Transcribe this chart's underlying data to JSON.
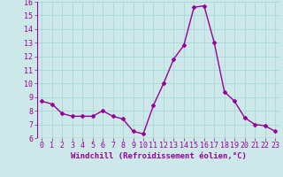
{
  "x": [
    0,
    1,
    2,
    3,
    4,
    5,
    6,
    7,
    8,
    9,
    10,
    11,
    12,
    13,
    14,
    15,
    16,
    17,
    18,
    19,
    20,
    21,
    22,
    23
  ],
  "y": [
    8.7,
    8.5,
    7.8,
    7.6,
    7.6,
    7.6,
    8.0,
    7.6,
    7.4,
    6.5,
    6.3,
    8.4,
    10.0,
    11.8,
    12.8,
    15.6,
    15.7,
    13.0,
    9.4,
    8.7,
    7.5,
    7.0,
    6.9,
    6.5
  ],
  "line_color": "#990099",
  "marker": "D",
  "marker_size": 2,
  "linewidth": 1.0,
  "xlabel": "Windchill (Refroidissement éolien,°C)",
  "xlabel_fontsize": 6.5,
  "ylim": [
    6,
    16
  ],
  "xlim": [
    -0.5,
    23.5
  ],
  "yticks": [
    6,
    7,
    8,
    9,
    10,
    11,
    12,
    13,
    14,
    15,
    16
  ],
  "xticks": [
    0,
    1,
    2,
    3,
    4,
    5,
    6,
    7,
    8,
    9,
    10,
    11,
    12,
    13,
    14,
    15,
    16,
    17,
    18,
    19,
    20,
    21,
    22,
    23
  ],
  "grid_color": "#a8d8d8",
  "background_color": "#cce8e8",
  "tick_fontsize": 6,
  "tick_label_color": "#990099",
  "xlabel_fontweight": "bold"
}
